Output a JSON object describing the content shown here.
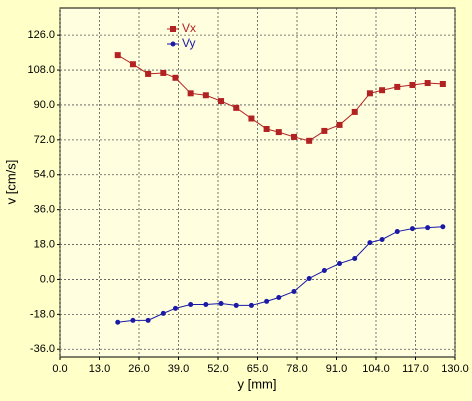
{
  "chart_data": {
    "type": "line",
    "xlabel": "y [mm]",
    "ylabel": "v [cm/s]",
    "x": [
      19,
      24,
      29,
      34,
      38,
      43,
      48,
      53,
      58,
      63,
      68,
      72,
      77,
      82,
      87,
      92,
      97,
      102,
      106,
      111,
      116,
      121,
      126
    ],
    "series": [
      {
        "name": "Vx",
        "color": "#b22222",
        "marker": "square",
        "values": [
          115.7,
          111,
          106,
          106.5,
          104,
          96,
          95,
          92,
          88.5,
          83,
          77.6,
          76,
          73.5,
          71.5,
          76.6,
          79.7,
          86.4,
          96,
          97.6,
          99.3,
          100.3,
          101.3,
          100.8
        ]
      },
      {
        "name": "Vy",
        "color": "#1a1aa6",
        "marker": "circle",
        "values": [
          -22.1,
          -21.1,
          -21.1,
          -17.5,
          -14.9,
          -12.9,
          -12.9,
          -12.4,
          -13.4,
          -13.4,
          -11.3,
          -9.3,
          -6.2,
          0.5,
          4.6,
          8.2,
          10.8,
          19,
          20.6,
          24.7,
          26.2,
          26.7,
          27.2
        ]
      }
    ],
    "xlim": [
      0,
      130
    ],
    "xticks": [
      {
        "value": 0,
        "label": "0.0"
      },
      {
        "value": 13,
        "label": "13.0"
      },
      {
        "value": 26,
        "label": "26.0"
      },
      {
        "value": 39,
        "label": "39.0"
      },
      {
        "value": 52,
        "label": "52.0"
      },
      {
        "value": 65,
        "label": "65.0"
      },
      {
        "value": 78,
        "label": "78.0"
      },
      {
        "value": 91,
        "label": "91.0"
      },
      {
        "value": 104,
        "label": "104.0"
      },
      {
        "value": 117,
        "label": "117.0"
      },
      {
        "value": 130,
        "label": "130.0"
      }
    ],
    "ylim": [
      -40,
      140
    ],
    "yticks": [
      {
        "value": -36,
        "label": "-36.0"
      },
      {
        "value": -18,
        "label": "-18.0"
      },
      {
        "value": 0,
        "label": "0.0"
      },
      {
        "value": 18,
        "label": "18.0"
      },
      {
        "value": 36,
        "label": "36.0"
      },
      {
        "value": 54,
        "label": "54.0"
      },
      {
        "value": 72,
        "label": "72.0"
      },
      {
        "value": 90,
        "label": "90.0"
      },
      {
        "value": 108,
        "label": "108.0"
      },
      {
        "value": 126,
        "label": "126.0"
      }
    ],
    "grid": true,
    "legend": "top-left"
  }
}
